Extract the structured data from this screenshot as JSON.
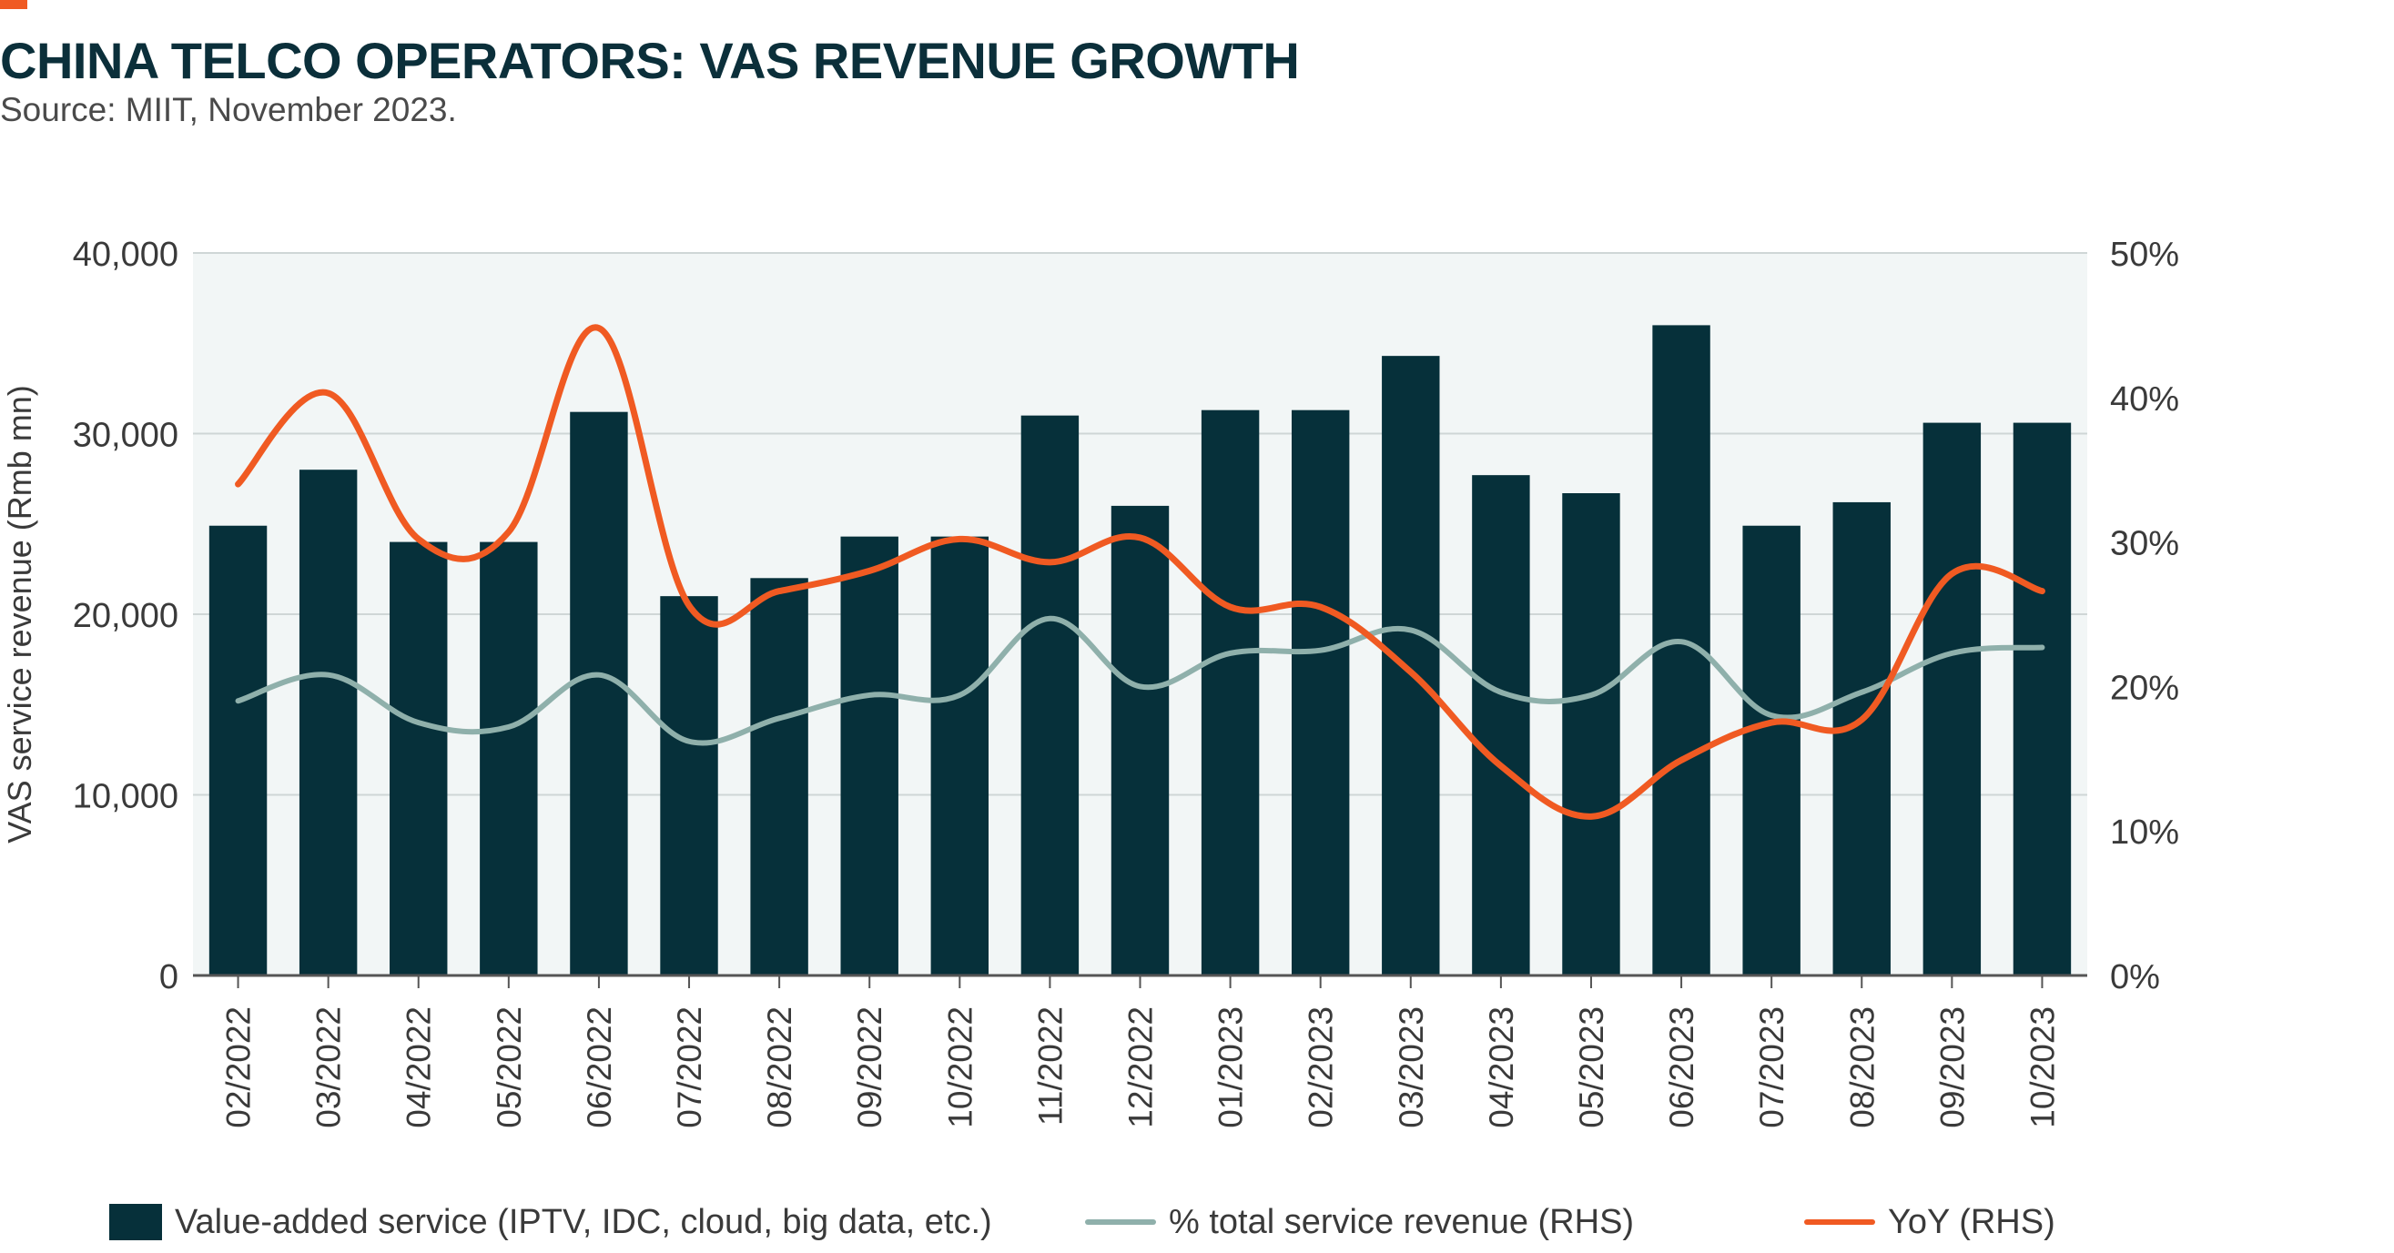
{
  "title": "CHINA TELCO OPERATORS: VAS REVENUE GROWTH",
  "subtitle": "Source: MIIT, November 2023.",
  "colors": {
    "accent": "#f05a22",
    "bars": "#06303a",
    "share_line": "#8fb0ab",
    "yoy_line": "#f05a22",
    "plot_background": "#f2f6f6"
  },
  "chart_data": {
    "type": "bar",
    "title": "CHINA TELCO OPERATORS: VAS REVENUE GROWTH",
    "subtitle": "Source: MIIT, November 2023.",
    "categories": [
      "02/2022",
      "03/2022",
      "04/2022",
      "05/2022",
      "06/2022",
      "07/2022",
      "08/2022",
      "09/2022",
      "10/2022",
      "11/2022",
      "12/2022",
      "01/2023",
      "02/2023",
      "03/2023",
      "04/2023",
      "05/2023",
      "06/2023",
      "07/2023",
      "08/2023",
      "09/2023",
      "10/2023"
    ],
    "ylabel": "VAS service revenue (Rmb mn)",
    "ylim": [
      0,
      40000
    ],
    "yticks": [
      0,
      10000,
      20000,
      30000,
      40000
    ],
    "ytick_labels": [
      "0",
      "10,000",
      "20,000",
      "30,000",
      "40,000"
    ],
    "y2lim": [
      0,
      50
    ],
    "y2ticks": [
      0,
      10,
      20,
      30,
      40,
      50
    ],
    "y2tick_labels": [
      "0%",
      "10%",
      "20%",
      "30%",
      "40%",
      "50%"
    ],
    "grid": true,
    "legend_position": "bottom",
    "series": [
      {
        "name": "Value-added service (IPTV, IDC, cloud, big data, etc.)",
        "type": "bar",
        "axis": "left",
        "values": [
          24900,
          28000,
          24000,
          24000,
          31200,
          21000,
          22000,
          24300,
          24300,
          31000,
          26000,
          31300,
          31300,
          34300,
          27700,
          26700,
          36000,
          24900,
          26200,
          30600,
          30600
        ]
      },
      {
        "name": "% total service revenue (RHS)",
        "type": "line",
        "axis": "right",
        "values": [
          19,
          20.8,
          17.5,
          17.2,
          20.8,
          16.2,
          17.8,
          19.4,
          19.4,
          24.7,
          20,
          22.3,
          22.5,
          23.9,
          19.6,
          19.4,
          23.1,
          18,
          19.6,
          22.3,
          22.7
        ]
      },
      {
        "name": "YoY (RHS)",
        "type": "line",
        "axis": "right",
        "values": [
          34,
          40.3,
          30.2,
          30.7,
          44.8,
          25.6,
          26.6,
          28,
          30.2,
          28.6,
          30.3,
          25.5,
          25.5,
          21,
          14.5,
          11,
          14.9,
          17.5,
          17.7,
          27.8,
          26.6
        ]
      }
    ]
  },
  "legend": [
    {
      "label": "Value-added service (IPTV, IDC, cloud, big data, etc.)",
      "swatch": "box"
    },
    {
      "label": "% total service revenue (RHS)",
      "swatch": "line"
    },
    {
      "label": "YoY (RHS)",
      "swatch": "line"
    }
  ]
}
